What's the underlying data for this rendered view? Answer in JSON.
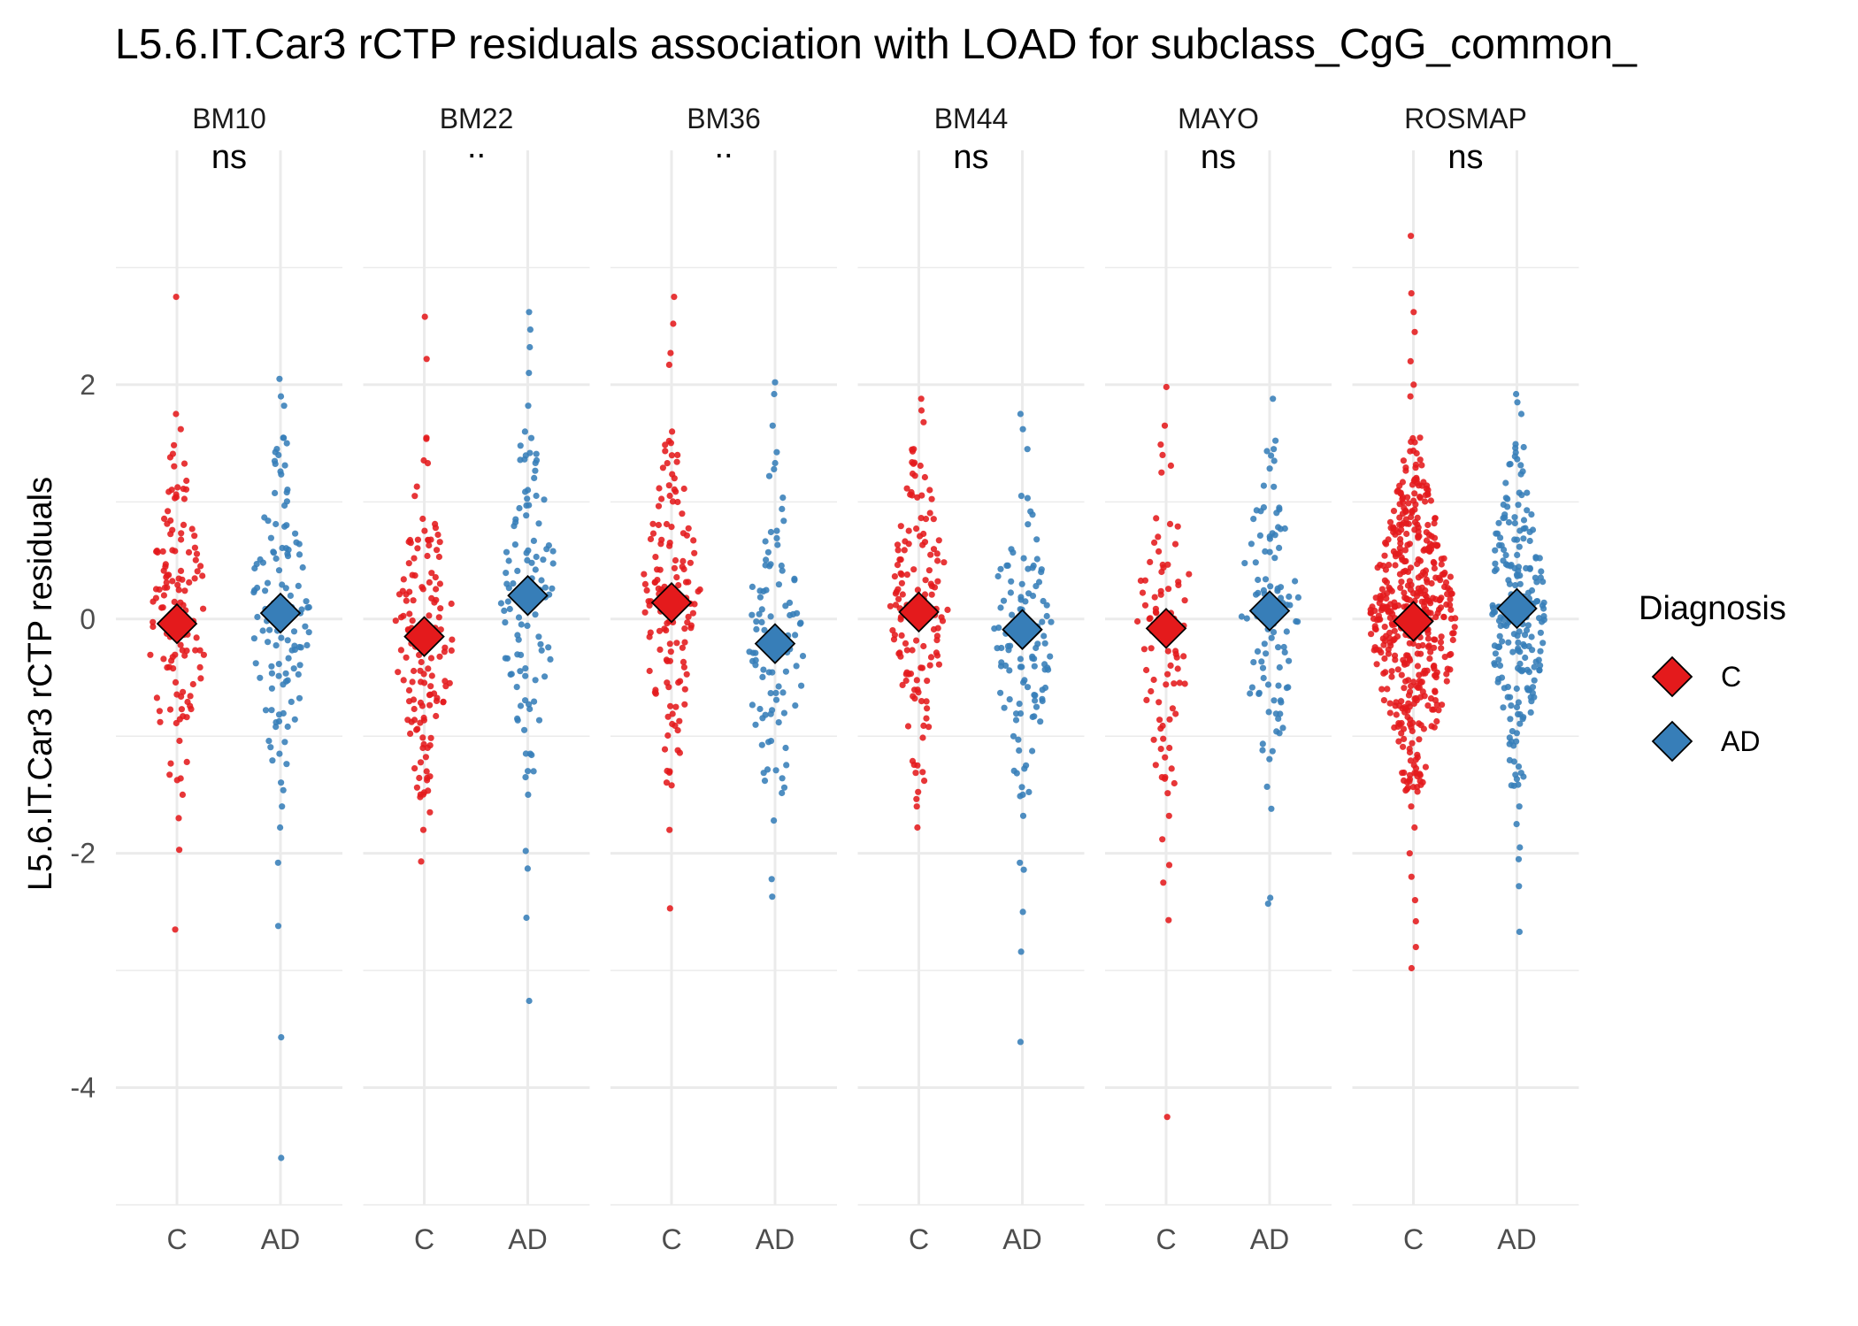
{
  "chart_data": {
    "type": "scatter",
    "title": "L5.6.IT.Car3 rCTP residuals association with LOAD for subclass_CgG_common_",
    "xlabel": "",
    "ylabel": "L5.6.IT.Car3 rCTP residuals",
    "ylim": [
      -5,
      4
    ],
    "yticks": [
      -4,
      -2,
      0,
      2
    ],
    "grid": true,
    "legend": {
      "title": "Diagnosis",
      "placement": "right",
      "entries": [
        {
          "label": "C",
          "color": "#e41a1c"
        },
        {
          "label": "AD",
          "color": "#377eb8"
        }
      ]
    },
    "categories": [
      "C",
      "AD"
    ],
    "panels": [
      {
        "name": "BM10",
        "significance": "ns",
        "groups": [
          {
            "label": "C",
            "color": "#e41a1c",
            "mean": -0.04,
            "n": 120,
            "extremes": [
              2.75,
              1.75,
              1.62,
              1.38,
              1.18,
              -1.22,
              -1.5,
              -1.7,
              -1.97,
              -2.65
            ]
          },
          {
            "label": "AD",
            "color": "#377eb8",
            "mean": 0.05,
            "n": 110,
            "extremes": [
              2.05,
              1.9,
              1.82,
              1.5,
              1.4,
              -1.05,
              -1.15,
              -1.6,
              -1.78,
              -2.08,
              -2.62,
              -3.57,
              -4.6
            ]
          }
        ]
      },
      {
        "name": "BM22",
        "significance": "..",
        "groups": [
          {
            "label": "C",
            "color": "#e41a1c",
            "mean": -0.15,
            "n": 130,
            "extremes": [
              2.58,
              2.22,
              1.33,
              1.05,
              -1.1,
              -1.3,
              -1.52,
              -1.65,
              -1.8,
              -2.07
            ]
          },
          {
            "label": "AD",
            "color": "#377eb8",
            "mean": 0.2,
            "n": 95,
            "extremes": [
              2.62,
              2.47,
              2.32,
              2.1,
              1.82,
              1.6,
              -1.15,
              -1.35,
              -1.5,
              -1.98,
              -2.13,
              -2.55,
              -3.26
            ]
          }
        ]
      },
      {
        "name": "BM36",
        "significance": "..",
        "groups": [
          {
            "label": "C",
            "color": "#e41a1c",
            "mean": 0.14,
            "n": 125,
            "extremes": [
              2.75,
              2.52,
              2.27,
              2.17,
              1.6,
              1.4,
              -1.3,
              -1.42,
              -1.8,
              -2.47
            ]
          },
          {
            "label": "AD",
            "color": "#377eb8",
            "mean": -0.21,
            "n": 90,
            "extremes": [
              2.02,
              1.92,
              1.65,
              1.22,
              -1.1,
              -1.38,
              -1.72,
              -2.22,
              -2.37
            ]
          }
        ]
      },
      {
        "name": "BM44",
        "significance": "ns",
        "groups": [
          {
            "label": "C",
            "color": "#e41a1c",
            "mean": 0.06,
            "n": 130,
            "extremes": [
              1.88,
              1.78,
              1.68,
              1.45,
              -1.25,
              -1.38,
              -1.6,
              -1.78
            ]
          },
          {
            "label": "AD",
            "color": "#377eb8",
            "mean": -0.09,
            "n": 100,
            "extremes": [
              1.75,
              1.62,
              1.45,
              -1.03,
              -1.25,
              -1.5,
              -1.68,
              -2.08,
              -2.14,
              -2.5,
              -2.84,
              -3.61
            ]
          }
        ]
      },
      {
        "name": "MAYO",
        "significance": "ns",
        "groups": [
          {
            "label": "C",
            "color": "#e41a1c",
            "mean": -0.08,
            "n": 80,
            "extremes": [
              1.98,
              1.65,
              1.4,
              1.25,
              -1.1,
              -1.35,
              -1.68,
              -1.88,
              -2.1,
              -2.25,
              -2.57,
              -4.25
            ]
          },
          {
            "label": "AD",
            "color": "#377eb8",
            "mean": 0.07,
            "n": 95,
            "extremes": [
              1.88,
              1.45,
              1.35,
              -0.85,
              -1.12,
              -1.62,
              -2.38,
              -2.43
            ]
          }
        ]
      },
      {
        "name": "ROSMAP",
        "significance": "ns",
        "groups": [
          {
            "label": "C",
            "color": "#e41a1c",
            "mean": -0.02,
            "n": 480,
            "extremes": [
              3.27,
              2.78,
              2.62,
              2.45,
              2.2,
              2.0,
              1.9,
              -1.6,
              -1.78,
              -2.0,
              -2.2,
              -2.4,
              -2.58,
              -2.8,
              -2.98
            ]
          },
          {
            "label": "AD",
            "color": "#377eb8",
            "mean": 0.09,
            "n": 210,
            "extremes": [
              1.92,
              1.85,
              1.75,
              -1.42,
              -1.6,
              -1.75,
              -1.95,
              -2.05,
              -2.28,
              -2.67
            ]
          }
        ]
      }
    ]
  }
}
